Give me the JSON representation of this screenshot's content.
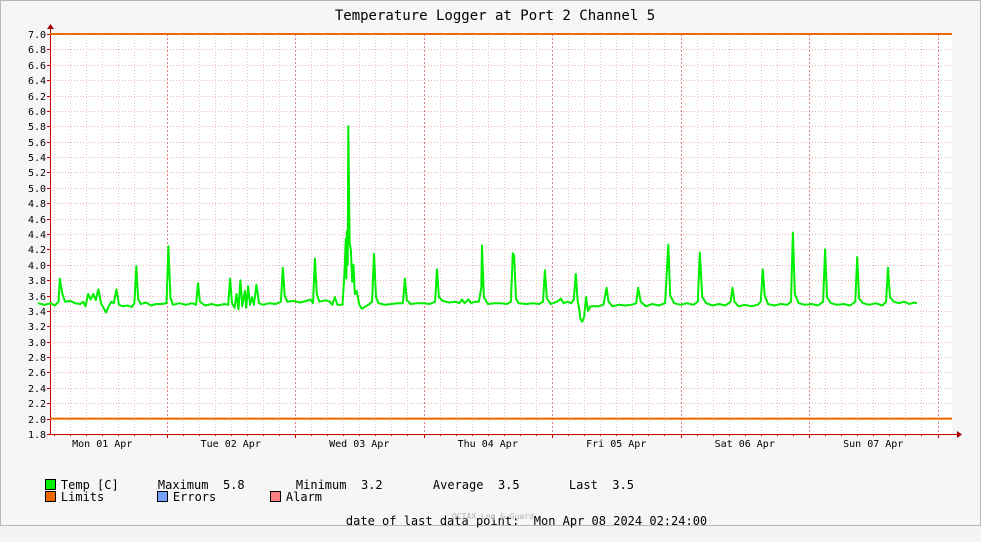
{
  "chart_data": {
    "type": "line",
    "title": "Temperature Logger at Port 2 Channel 5",
    "ylim": [
      1.8,
      7.0
    ],
    "yticks": [
      "7.0",
      "6.8",
      "6.6",
      "6.4",
      "6.2",
      "6.0",
      "5.8",
      "5.6",
      "5.4",
      "5.2",
      "5.0",
      "4.8",
      "4.6",
      "4.4",
      "4.2",
      "4.0",
      "3.8",
      "3.6",
      "3.4",
      "3.2",
      "3.0",
      "2.8",
      "2.6",
      "2.4",
      "2.2",
      "2.0",
      "1.8"
    ],
    "xlim_days": [
      0,
      7
    ],
    "xticks": [
      "Mon 01 Apr",
      "Tue 02 Apr",
      "Wed 03 Apr",
      "Thu 04 Apr",
      "Fri 05 Apr",
      "Sat 06 Apr",
      "Sun 07 Apr"
    ],
    "limits": [
      2.0,
      7.0
    ],
    "grid": true,
    "series": [
      {
        "name": "Temp [C]",
        "color": "#00ee00",
        "points": [
          [
            0.0,
            3.5
          ],
          [
            0.05,
            3.48
          ],
          [
            0.1,
            3.5
          ],
          [
            0.13,
            3.47
          ],
          [
            0.16,
            3.52
          ],
          [
            0.17,
            3.82
          ],
          [
            0.19,
            3.62
          ],
          [
            0.21,
            3.52
          ],
          [
            0.25,
            3.53
          ],
          [
            0.29,
            3.5
          ],
          [
            0.33,
            3.49
          ],
          [
            0.35,
            3.52
          ],
          [
            0.37,
            3.46
          ],
          [
            0.39,
            3.62
          ],
          [
            0.41,
            3.55
          ],
          [
            0.43,
            3.62
          ],
          [
            0.45,
            3.54
          ],
          [
            0.47,
            3.68
          ],
          [
            0.49,
            3.5
          ],
          [
            0.51,
            3.44
          ],
          [
            0.53,
            3.38
          ],
          [
            0.55,
            3.46
          ],
          [
            0.57,
            3.52
          ],
          [
            0.59,
            3.5
          ],
          [
            0.61,
            3.68
          ],
          [
            0.63,
            3.48
          ],
          [
            0.66,
            3.46
          ],
          [
            0.7,
            3.47
          ],
          [
            0.73,
            3.45
          ],
          [
            0.75,
            3.5
          ],
          [
            0.765,
            3.98
          ],
          [
            0.78,
            3.55
          ],
          [
            0.8,
            3.49
          ],
          [
            0.84,
            3.51
          ],
          [
            0.88,
            3.47
          ],
          [
            0.92,
            3.49
          ],
          [
            0.96,
            3.49
          ],
          [
            1.0,
            3.5
          ],
          [
            1.015,
            4.24
          ],
          [
            1.03,
            3.58
          ],
          [
            1.05,
            3.48
          ],
          [
            1.1,
            3.5
          ],
          [
            1.15,
            3.48
          ],
          [
            1.2,
            3.5
          ],
          [
            1.23,
            3.48
          ],
          [
            1.245,
            3.76
          ],
          [
            1.26,
            3.52
          ],
          [
            1.3,
            3.47
          ],
          [
            1.35,
            3.49
          ],
          [
            1.4,
            3.47
          ],
          [
            1.45,
            3.49
          ],
          [
            1.48,
            3.48
          ],
          [
            1.495,
            3.82
          ],
          [
            1.51,
            3.5
          ],
          [
            1.53,
            3.44
          ],
          [
            1.545,
            3.62
          ],
          [
            1.56,
            3.42
          ],
          [
            1.575,
            3.8
          ],
          [
            1.59,
            3.46
          ],
          [
            1.61,
            3.66
          ],
          [
            1.62,
            3.44
          ],
          [
            1.635,
            3.72
          ],
          [
            1.65,
            3.48
          ],
          [
            1.665,
            3.58
          ],
          [
            1.68,
            3.48
          ],
          [
            1.7,
            3.74
          ],
          [
            1.72,
            3.5
          ],
          [
            1.75,
            3.48
          ],
          [
            1.8,
            3.5
          ],
          [
            1.85,
            3.49
          ],
          [
            1.89,
            3.52
          ],
          [
            1.905,
            3.96
          ],
          [
            1.92,
            3.6
          ],
          [
            1.94,
            3.52
          ],
          [
            1.99,
            3.53
          ],
          [
            2.04,
            3.51
          ],
          [
            2.09,
            3.53
          ],
          [
            2.12,
            3.55
          ],
          [
            2.14,
            3.5
          ],
          [
            2.155,
            4.08
          ],
          [
            2.17,
            3.62
          ],
          [
            2.19,
            3.52
          ],
          [
            2.24,
            3.54
          ],
          [
            2.27,
            3.52
          ],
          [
            2.29,
            3.48
          ],
          [
            2.31,
            3.58
          ],
          [
            2.33,
            3.48
          ],
          [
            2.37,
            3.48
          ],
          [
            2.385,
            3.9
          ],
          [
            2.395,
            4.34
          ],
          [
            2.4,
            3.82
          ],
          [
            2.405,
            4.44
          ],
          [
            2.41,
            4.0
          ],
          [
            2.415,
            5.8
          ],
          [
            2.425,
            4.3
          ],
          [
            2.435,
            4.18
          ],
          [
            2.445,
            3.78
          ],
          [
            2.455,
            4.0
          ],
          [
            2.465,
            3.62
          ],
          [
            2.48,
            3.66
          ],
          [
            2.5,
            3.48
          ],
          [
            2.52,
            3.43
          ],
          [
            2.55,
            3.46
          ],
          [
            2.58,
            3.49
          ],
          [
            2.6,
            3.52
          ],
          [
            2.615,
            4.14
          ],
          [
            2.63,
            3.58
          ],
          [
            2.65,
            3.5
          ],
          [
            2.7,
            3.48
          ],
          [
            2.75,
            3.49
          ],
          [
            2.8,
            3.5
          ],
          [
            2.84,
            3.5
          ],
          [
            2.855,
            3.82
          ],
          [
            2.87,
            3.54
          ],
          [
            2.9,
            3.49
          ],
          [
            2.95,
            3.5
          ],
          [
            3.0,
            3.5
          ],
          [
            3.05,
            3.49
          ],
          [
            3.09,
            3.52
          ],
          [
            3.105,
            3.94
          ],
          [
            3.12,
            3.58
          ],
          [
            3.15,
            3.53
          ],
          [
            3.2,
            3.51
          ],
          [
            3.25,
            3.52
          ],
          [
            3.28,
            3.5
          ],
          [
            3.3,
            3.55
          ],
          [
            3.32,
            3.5
          ],
          [
            3.35,
            3.55
          ],
          [
            3.37,
            3.5
          ],
          [
            3.4,
            3.52
          ],
          [
            3.43,
            3.52
          ],
          [
            3.45,
            3.7
          ],
          [
            3.455,
            4.25
          ],
          [
            3.47,
            3.58
          ],
          [
            3.5,
            3.49
          ],
          [
            3.55,
            3.5
          ],
          [
            3.6,
            3.5
          ],
          [
            3.65,
            3.49
          ],
          [
            3.68,
            3.52
          ],
          [
            3.695,
            4.15
          ],
          [
            3.705,
            4.12
          ],
          [
            3.72,
            3.56
          ],
          [
            3.74,
            3.5
          ],
          [
            3.8,
            3.49
          ],
          [
            3.85,
            3.5
          ],
          [
            3.9,
            3.49
          ],
          [
            3.93,
            3.52
          ],
          [
            3.945,
            3.93
          ],
          [
            3.96,
            3.56
          ],
          [
            3.99,
            3.49
          ],
          [
            4.04,
            3.52
          ],
          [
            4.07,
            3.56
          ],
          [
            4.09,
            3.5
          ],
          [
            4.12,
            3.52
          ],
          [
            4.15,
            3.5
          ],
          [
            4.17,
            3.55
          ],
          [
            4.185,
            3.88
          ],
          [
            4.2,
            3.52
          ],
          [
            4.21,
            3.44
          ],
          [
            4.22,
            3.3
          ],
          [
            4.235,
            3.26
          ],
          [
            4.25,
            3.32
          ],
          [
            4.265,
            3.58
          ],
          [
            4.28,
            3.4
          ],
          [
            4.3,
            3.46
          ],
          [
            4.33,
            3.46
          ],
          [
            4.36,
            3.46
          ],
          [
            4.4,
            3.48
          ],
          [
            4.425,
            3.7
          ],
          [
            4.44,
            3.52
          ],
          [
            4.47,
            3.46
          ],
          [
            4.52,
            3.48
          ],
          [
            4.57,
            3.47
          ],
          [
            4.62,
            3.48
          ],
          [
            4.655,
            3.5
          ],
          [
            4.67,
            3.7
          ],
          [
            4.69,
            3.52
          ],
          [
            4.73,
            3.46
          ],
          [
            4.78,
            3.49
          ],
          [
            4.83,
            3.47
          ],
          [
            4.88,
            3.5
          ],
          [
            4.905,
            4.26
          ],
          [
            4.92,
            3.6
          ],
          [
            4.95,
            3.5
          ],
          [
            5.0,
            3.48
          ],
          [
            5.05,
            3.5
          ],
          [
            5.1,
            3.48
          ],
          [
            5.135,
            3.52
          ],
          [
            5.15,
            4.16
          ],
          [
            5.17,
            3.58
          ],
          [
            5.2,
            3.5
          ],
          [
            5.25,
            3.47
          ],
          [
            5.3,
            3.49
          ],
          [
            5.35,
            3.47
          ],
          [
            5.39,
            3.52
          ],
          [
            5.405,
            3.7
          ],
          [
            5.42,
            3.52
          ],
          [
            5.45,
            3.46
          ],
          [
            5.5,
            3.48
          ],
          [
            5.55,
            3.46
          ],
          [
            5.6,
            3.48
          ],
          [
            5.625,
            3.52
          ],
          [
            5.64,
            3.94
          ],
          [
            5.655,
            3.6
          ],
          [
            5.68,
            3.49
          ],
          [
            5.73,
            3.47
          ],
          [
            5.78,
            3.49
          ],
          [
            5.83,
            3.48
          ],
          [
            5.86,
            3.52
          ],
          [
            5.875,
            4.42
          ],
          [
            5.89,
            3.62
          ],
          [
            5.92,
            3.5
          ],
          [
            5.97,
            3.48
          ],
          [
            6.02,
            3.49
          ],
          [
            6.07,
            3.47
          ],
          [
            6.11,
            3.52
          ],
          [
            6.125,
            4.2
          ],
          [
            6.14,
            3.58
          ],
          [
            6.17,
            3.5
          ],
          [
            6.22,
            3.48
          ],
          [
            6.27,
            3.49
          ],
          [
            6.32,
            3.47
          ],
          [
            6.36,
            3.52
          ],
          [
            6.375,
            4.1
          ],
          [
            6.39,
            3.56
          ],
          [
            6.42,
            3.5
          ],
          [
            6.47,
            3.48
          ],
          [
            6.52,
            3.5
          ],
          [
            6.57,
            3.47
          ],
          [
            6.6,
            3.52
          ],
          [
            6.615,
            3.96
          ],
          [
            6.63,
            3.58
          ],
          [
            6.66,
            3.52
          ],
          [
            6.7,
            3.5
          ],
          [
            6.74,
            3.52
          ],
          [
            6.78,
            3.49
          ],
          [
            6.82,
            3.51
          ],
          [
            6.84,
            3.5
          ]
        ]
      }
    ]
  },
  "legend": {
    "temp_label": "Temp [C]",
    "max_label": "Maximum",
    "max_value": "5.8",
    "min_label": "Minimum",
    "min_value": "3.2",
    "avg_label": "Average",
    "avg_value": "3.5",
    "last_label": "Last",
    "last_value": "3.5",
    "limits_label": "Limits",
    "errors_label": "Errors",
    "alarm_label": "Alarm"
  },
  "colors": {
    "temp": "#00ee00",
    "limits": "#ee6a00",
    "errors": "#7aa0ff",
    "alarm": "#ff7f7f"
  },
  "footer": {
    "last_point_label": "date of last data point:",
    "last_point_value": "Mon Apr 08 2024 02:24:00",
    "watermark": "OCTAX Log & Guard"
  }
}
